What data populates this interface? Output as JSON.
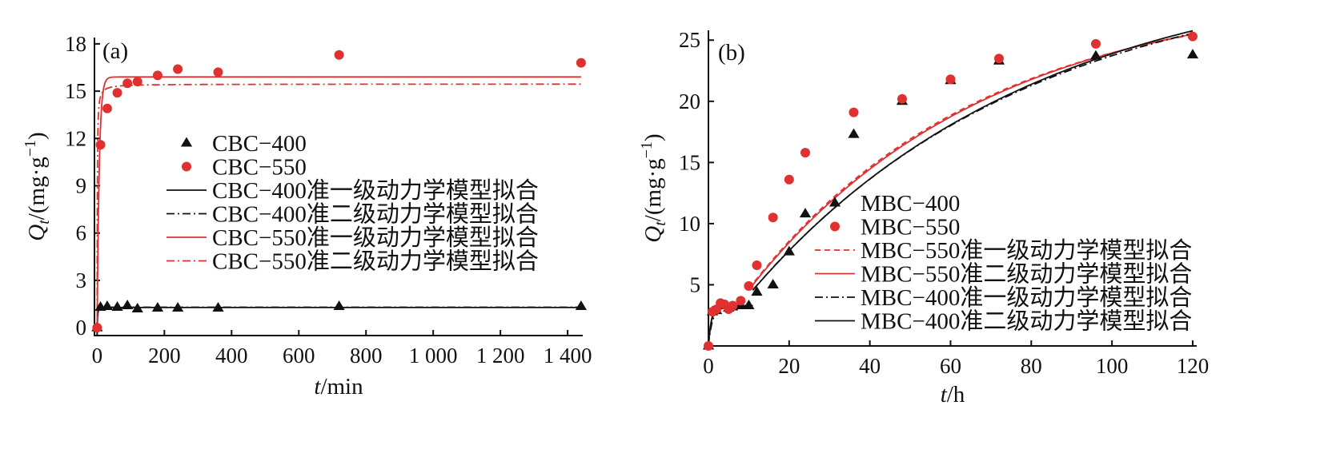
{
  "chart_data": [
    {
      "type": "scatter",
      "panel_label": "(a)",
      "xlabel": "t/min",
      "xlabel_var": "t",
      "xlabel_unit": "/min",
      "ylabel": "Qt/(mg·g−1)",
      "ylabel_var": "Q",
      "ylabel_sub": "t",
      "ylabel_unit": "/(mg·g",
      "ylabel_sup": "−1",
      "ylabel_close": ")",
      "xlim": [
        0,
        1440
      ],
      "ylim": [
        0,
        18
      ],
      "xticks": [
        0,
        200,
        400,
        600,
        800,
        1000,
        1200,
        1400
      ],
      "xtick_labels": [
        "0",
        "200",
        "400",
        "600",
        "800",
        "1 000",
        "1 200",
        "1 400"
      ],
      "yticks": [
        0,
        3,
        6,
        9,
        12,
        15,
        18
      ],
      "ytick_labels": [
        "0",
        "3",
        "6",
        "9",
        "12",
        "15",
        "18"
      ],
      "legend_position": "center",
      "series": [
        {
          "name": "CBC−400",
          "kind": "points",
          "marker": "triangle",
          "color": "#111111",
          "x": [
            0,
            10,
            30,
            60,
            90,
            120,
            180,
            240,
            360,
            720,
            1440
          ],
          "y": [
            0,
            1.3,
            1.35,
            1.3,
            1.4,
            1.2,
            1.25,
            1.25,
            1.25,
            1.35,
            1.35
          ]
        },
        {
          "name": "CBC−550",
          "kind": "points",
          "marker": "circle",
          "color": "#e03030",
          "x": [
            0,
            10,
            30,
            60,
            90,
            120,
            180,
            240,
            360,
            720,
            1440
          ],
          "y": [
            0,
            11.6,
            13.9,
            14.9,
            15.5,
            15.6,
            16.0,
            16.4,
            16.2,
            17.3,
            16.8
          ]
        },
        {
          "name": "CBC−400准一级动力学模型拟合",
          "kind": "fit-pfo",
          "line": "solid",
          "color": "#111111",
          "qe": 1.28,
          "k": 0.5
        },
        {
          "name": "CBC−400准二级动力学模型拟合",
          "kind": "fit-pfo",
          "line": "dashdot",
          "color": "#111111",
          "qe": 1.3,
          "k": 0.45
        },
        {
          "name": "CBC−550准一级动力学模型拟合",
          "kind": "fit-pfo",
          "line": "solid",
          "color": "#e03030",
          "qe": 15.9,
          "k": 0.16
        },
        {
          "name": "CBC−550准二级动力学模型拟合",
          "kind": "fit-pso",
          "line": "dashdot",
          "color": "#e03030",
          "qe": 15.45,
          "k": 0.12
        }
      ]
    },
    {
      "type": "scatter",
      "panel_label": "(b)",
      "xlabel": "t/h",
      "xlabel_var": "t",
      "xlabel_unit": "/h",
      "ylabel": "Qt/(mg·g−1)",
      "ylabel_var": "Q",
      "ylabel_sub": "t",
      "ylabel_unit": "/(mg·g",
      "ylabel_sup": "−1",
      "ylabel_close": ")",
      "xlim": [
        0,
        120
      ],
      "ylim": [
        0,
        25
      ],
      "xticks": [
        0,
        20,
        40,
        60,
        80,
        100,
        120
      ],
      "xtick_labels": [
        "0",
        "20",
        "40",
        "60",
        "80",
        "100",
        "120"
      ],
      "yticks": [
        5,
        10,
        15,
        20,
        25
      ],
      "ytick_labels": [
        "5",
        "10",
        "15",
        "20",
        "25"
      ],
      "legend_position": "bottom-right",
      "series": [
        {
          "name": "MBC−400",
          "kind": "points",
          "marker": "triangle",
          "color": "#111111",
          "x": [
            0,
            1,
            2,
            3,
            4,
            5,
            6,
            8,
            10,
            12,
            16,
            20,
            24,
            36,
            48,
            60,
            72,
            96,
            120
          ],
          "y": [
            0,
            2.8,
            2.9,
            3.3,
            3.3,
            3.1,
            3.2,
            3.3,
            3.3,
            4.4,
            5.0,
            7.7,
            10.8,
            17.3,
            20.0,
            21.7,
            23.3,
            23.7,
            23.8
          ]
        },
        {
          "name": "MBC−550",
          "kind": "points",
          "marker": "circle",
          "color": "#e03030",
          "x": [
            0,
            1,
            2,
            3,
            4,
            5,
            6,
            8,
            10,
            12,
            16,
            20,
            24,
            36,
            48,
            60,
            72,
            96,
            120
          ],
          "y": [
            0,
            2.8,
            3.0,
            3.5,
            3.4,
            3.0,
            3.3,
            3.7,
            4.9,
            6.6,
            10.5,
            13.6,
            15.8,
            19.1,
            20.2,
            21.8,
            23.5,
            24.7,
            25.3
          ]
        },
        {
          "name": "MBC−550准一级动力学模型拟合",
          "kind": "fit-piecewise",
          "line": "dashed",
          "color": "#e03030",
          "early_q": 3.2,
          "early_k": 1.2,
          "early_end": 10,
          "late_start": 10,
          "late_qe": 29.0,
          "late_k": 0.0175
        },
        {
          "name": "MBC−550准二级动力学模型拟合",
          "kind": "fit-piecewise",
          "line": "solid",
          "color": "#e03030",
          "early_q": 3.3,
          "early_k": 1.4,
          "early_end": 10,
          "late_start": 10,
          "late_qe": 29.3,
          "late_k": 0.017
        },
        {
          "name": "MBC−400准一级动力学模型拟合",
          "kind": "fit-piecewise",
          "line": "dashdot",
          "color": "#111111",
          "early_q": 3.2,
          "early_k": 1.0,
          "early_end": 11,
          "late_start": 11,
          "late_qe": 31.0,
          "late_k": 0.0145
        },
        {
          "name": "MBC−400准二级动力学模型拟合",
          "kind": "fit-piecewise",
          "line": "solid",
          "color": "#111111",
          "early_q": 3.3,
          "early_k": 1.3,
          "early_end": 11,
          "late_start": 11,
          "late_qe": 31.5,
          "late_k": 0.0142
        }
      ]
    }
  ]
}
